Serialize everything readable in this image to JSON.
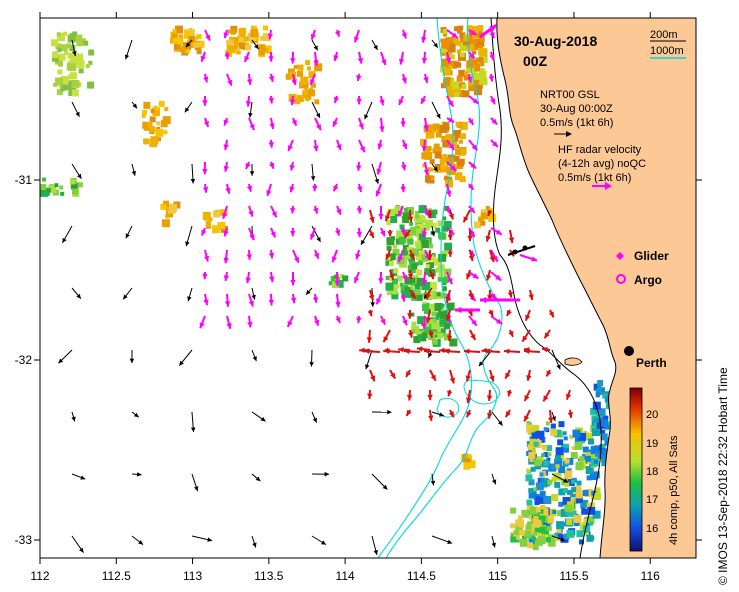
{
  "map": {
    "lon_ticks": [
      "112",
      "112.5",
      "113",
      "113.5",
      "114",
      "114.5",
      "115",
      "115.5",
      "116"
    ],
    "lat_ticks": [
      "-31",
      "-32",
      "-33"
    ],
    "lon_range": [
      112,
      116.3
    ],
    "lat_range": [
      -33.1,
      -30.1
    ]
  },
  "header": {
    "date": "30-Aug-2018",
    "time": "00Z"
  },
  "contour_legend": {
    "label_200": "200m",
    "label_1000": "1000m",
    "color_200": "#000000",
    "color_1000": "#00d8e0"
  },
  "gsl_legend": {
    "line1": "NRT00 GSL",
    "line2": "30-Aug 00:00Z",
    "line3": "0.5m/s (1kt 6h)"
  },
  "hf_legend": {
    "line1": "HF radar velocity",
    "line2": "(4-12h avg) noQC",
    "line3": "0.5m/s (1kt 6h)"
  },
  "symbols": {
    "glider": "Glider",
    "argo": "Argo",
    "city": "Perth",
    "glider_color": "#ff00ff",
    "argo_color": "#ff00ff"
  },
  "colorbar": {
    "title": "4h comp, p50, All Sats",
    "ticks": [
      "20",
      "19",
      "18",
      "17",
      "16"
    ]
  },
  "credit": "© IMOS 13-Sep-2018 22:32 Hobart Time",
  "colors": {
    "land": "#fcc896",
    "contour_1000": "#00d8e0",
    "contour_200": "#000000",
    "hf_arrow": "#ff00ff",
    "radar_red": "#e01010",
    "gsl_arrow": "#000000"
  }
}
